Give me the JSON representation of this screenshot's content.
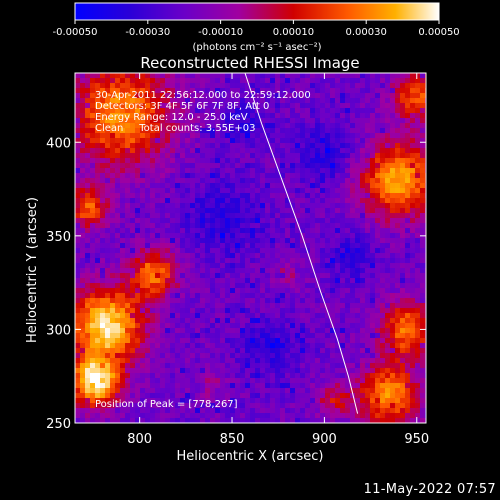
{
  "chart_data": {
    "type": "heatmap",
    "title": "Reconstructed RHESSI Image",
    "xlabel": "Heliocentric X (arcsec)",
    "ylabel": "Heliocentric Y (arcsec)",
    "xlim": [
      765,
      955
    ],
    "ylim": [
      250,
      437
    ],
    "x_ticks": [
      800,
      850,
      900,
      950
    ],
    "y_ticks": [
      250,
      300,
      350,
      400
    ],
    "colorbar": {
      "range": [
        -0.0005,
        0.0005
      ],
      "tick_values": [
        -0.0005,
        -0.0003,
        -0.0001,
        0.0001,
        0.0003,
        0.0005
      ],
      "tick_labels": [
        "-0.00050",
        "-0.00030",
        "-0.00010",
        "0.00010",
        "0.00030",
        "0.00050"
      ],
      "unit_label": "(photons cm⁻² s⁻¹ asec⁻²)",
      "colors": [
        "#0000ff",
        "#2a00d8",
        "#6a00c8",
        "#a000a0",
        "#d00000",
        "#ff5a00",
        "#ffb000",
        "#ffffff"
      ]
    },
    "info_lines": [
      "30-Apr-2011 22:56:12.000 to 22:59:12.000",
      "Detectors: 3F 4F 5F 6F 7F 8F, Att 0",
      "Energy Range: 12.0 - 25.0 keV",
      "Clean     Total counts: 3.55E+03"
    ],
    "peak_label": "Position of Peak = [778,267]",
    "peak_position": [
      778,
      267
    ],
    "limb_curve": {
      "x": [
        857,
        866,
        877,
        888,
        898,
        907,
        913,
        918
      ],
      "y": [
        437,
        410,
        380,
        350,
        320,
        295,
        275,
        255
      ]
    },
    "bright_regions": [
      {
        "x": 782,
        "y": 302,
        "r": 22,
        "level": 0.95
      },
      {
        "x": 776,
        "y": 272,
        "r": 14,
        "level": 1.0
      },
      {
        "x": 790,
        "y": 415,
        "r": 30,
        "level": 0.8
      },
      {
        "x": 772,
        "y": 365,
        "r": 12,
        "level": 0.7
      },
      {
        "x": 808,
        "y": 330,
        "r": 14,
        "level": 0.75
      },
      {
        "x": 940,
        "y": 380,
        "r": 22,
        "level": 0.85
      },
      {
        "x": 945,
        "y": 300,
        "r": 16,
        "level": 0.75
      },
      {
        "x": 935,
        "y": 265,
        "r": 18,
        "level": 0.8
      },
      {
        "x": 950,
        "y": 425,
        "r": 14,
        "level": 0.7
      },
      {
        "x": 905,
        "y": 262,
        "r": 10,
        "level": 0.55
      },
      {
        "x": 880,
        "y": 330,
        "r": 8,
        "level": 0.45
      },
      {
        "x": 840,
        "y": 270,
        "r": 8,
        "level": 0.45
      }
    ],
    "dim_regions": [
      {
        "x": 845,
        "y": 360,
        "r": 25
      },
      {
        "x": 900,
        "y": 395,
        "r": 20
      },
      {
        "x": 915,
        "y": 340,
        "r": 15
      },
      {
        "x": 870,
        "y": 290,
        "r": 18
      },
      {
        "x": 855,
        "y": 410,
        "r": 14
      }
    ]
  },
  "footer": {
    "timestamp": "11-May-2022 07:57"
  }
}
